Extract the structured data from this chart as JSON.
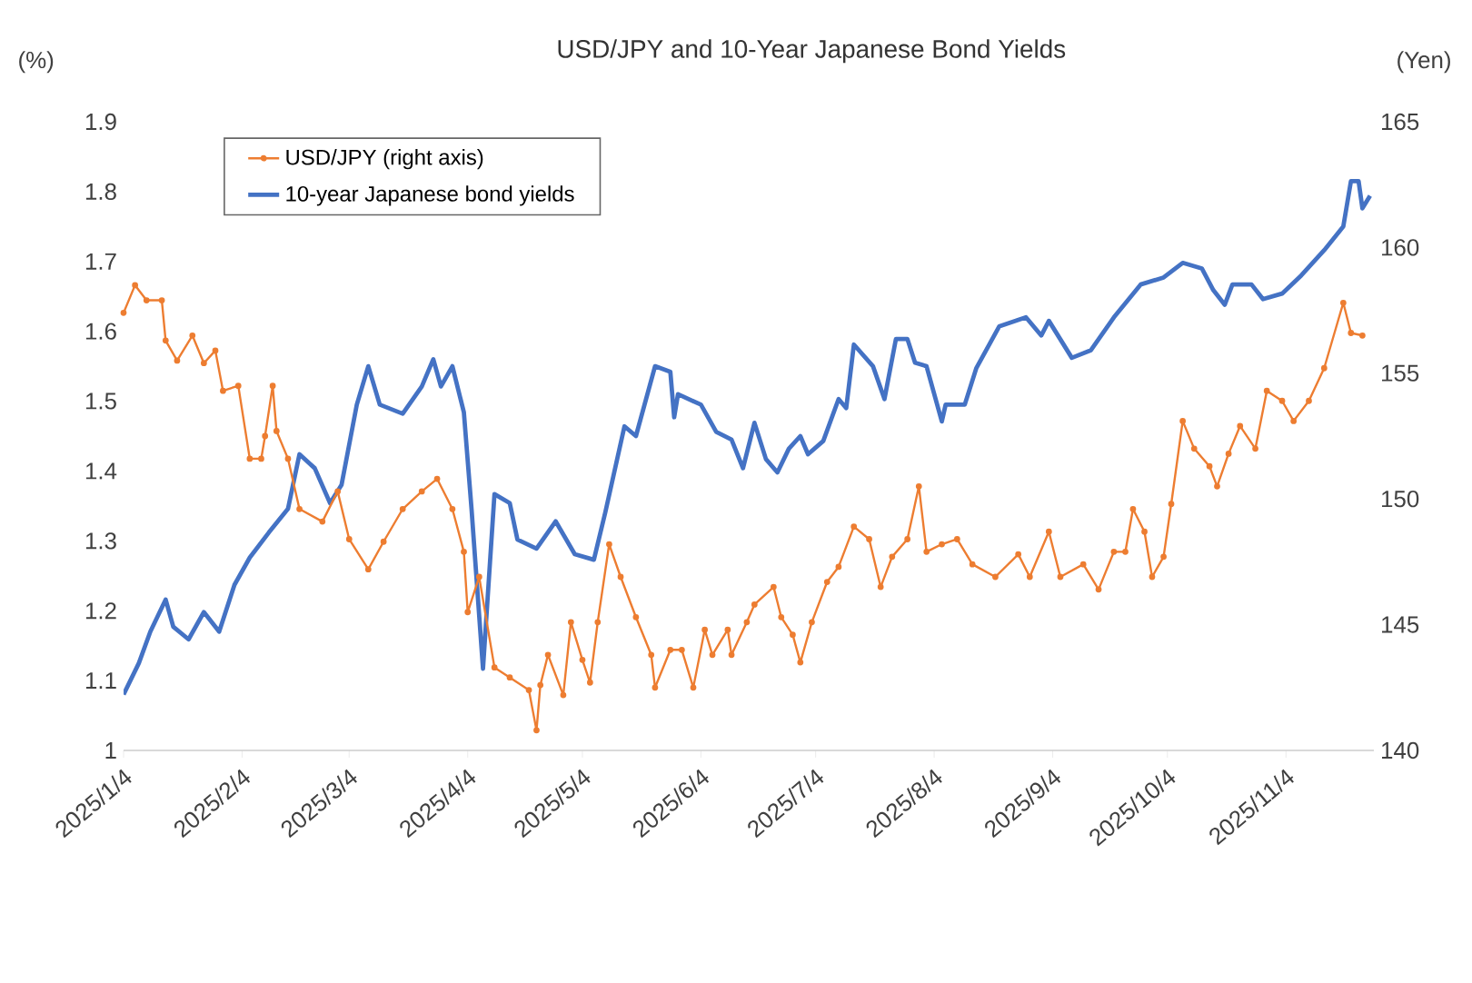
{
  "chart_data": {
    "type": "line",
    "title": "USD/JPY and 10-Year Japanese Bond Yields",
    "ylabel": "(%)",
    "y2label": "(Yen)",
    "xlim": [
      "2025-01-04",
      "2025-11-27"
    ],
    "xticks": [
      {
        "value": "2025-01-04",
        "label": "2025/1/4"
      },
      {
        "value": "2025-02-04",
        "label": "2025/2/4"
      },
      {
        "value": "2025-03-04",
        "label": "2025/3/4"
      },
      {
        "value": "2025-04-04",
        "label": "2025/4/4"
      },
      {
        "value": "2025-05-04",
        "label": "2025/5/4"
      },
      {
        "value": "2025-06-04",
        "label": "2025/6/4"
      },
      {
        "value": "2025-07-04",
        "label": "2025/7/4"
      },
      {
        "value": "2025-08-04",
        "label": "2025/8/4"
      },
      {
        "value": "2025-09-04",
        "label": "2025/9/4"
      },
      {
        "value": "2025-10-04",
        "label": "2025/10/4"
      },
      {
        "value": "2025-11-04",
        "label": "2025/11/4"
      }
    ],
    "ylim": [
      1,
      1.9
    ],
    "yticks": [
      1,
      1.1,
      1.2,
      1.3,
      1.4,
      1.5,
      1.6,
      1.7,
      1.8,
      1.9
    ],
    "y2lim": [
      140,
      165
    ],
    "y2ticks": [
      140,
      145,
      150,
      155,
      160,
      165
    ],
    "legend": "top",
    "series": [
      {
        "name": "USD/JPY (right axis)",
        "color": "#ed7d31",
        "axis": "y2",
        "marker": "circle",
        "x": [
          "2025-01-04",
          "2025-01-07",
          "2025-01-10",
          "2025-01-14",
          "2025-01-15",
          "2025-01-18",
          "2025-01-22",
          "2025-01-25",
          "2025-01-28",
          "2025-01-30",
          "2025-02-03",
          "2025-02-06",
          "2025-02-09",
          "2025-02-10",
          "2025-02-12",
          "2025-02-13",
          "2025-02-16",
          "2025-02-19",
          "2025-02-25",
          "2025-03-01",
          "2025-03-04",
          "2025-03-09",
          "2025-03-13",
          "2025-03-18",
          "2025-03-23",
          "2025-03-27",
          "2025-03-31",
          "2025-04-03",
          "2025-04-04",
          "2025-04-07",
          "2025-04-11",
          "2025-04-15",
          "2025-04-20",
          "2025-04-22",
          "2025-04-23",
          "2025-04-25",
          "2025-04-29",
          "2025-05-01",
          "2025-05-04",
          "2025-05-06",
          "2025-05-08",
          "2025-05-11",
          "2025-05-14",
          "2025-05-18",
          "2025-05-22",
          "2025-05-23",
          "2025-05-27",
          "2025-05-30",
          "2025-06-02",
          "2025-06-05",
          "2025-06-07",
          "2025-06-11",
          "2025-06-12",
          "2025-06-16",
          "2025-06-18",
          "2025-06-23",
          "2025-06-25",
          "2025-06-28",
          "2025-06-30",
          "2025-07-03",
          "2025-07-07",
          "2025-07-10",
          "2025-07-14",
          "2025-07-18",
          "2025-07-21",
          "2025-07-24",
          "2025-07-28",
          "2025-07-31",
          "2025-08-02",
          "2025-08-06",
          "2025-08-10",
          "2025-08-14",
          "2025-08-20",
          "2025-08-26",
          "2025-08-29",
          "2025-09-03",
          "2025-09-06",
          "2025-09-12",
          "2025-09-16",
          "2025-09-20",
          "2025-09-23",
          "2025-09-25",
          "2025-09-28",
          "2025-09-30",
          "2025-10-03",
          "2025-10-05",
          "2025-10-08",
          "2025-10-11",
          "2025-10-15",
          "2025-10-17",
          "2025-10-20",
          "2025-10-23",
          "2025-10-27",
          "2025-10-30",
          "2025-11-03",
          "2025-11-06",
          "2025-11-10",
          "2025-11-14",
          "2025-11-19",
          "2025-11-21",
          "2025-11-24"
        ],
        "values": [
          157.4,
          158.5,
          157.9,
          157.9,
          156.3,
          155.5,
          156.5,
          155.4,
          155.9,
          154.3,
          154.5,
          151.6,
          151.6,
          152.5,
          154.5,
          152.7,
          151.6,
          149.6,
          149.1,
          150.3,
          148.4,
          147.2,
          148.3,
          149.6,
          150.3,
          150.8,
          149.6,
          147.9,
          145.5,
          146.9,
          143.3,
          142.9,
          142.4,
          140.8,
          142.6,
          143.8,
          142.2,
          145.1,
          143.6,
          142.7,
          145.1,
          148.2,
          146.9,
          145.3,
          143.8,
          142.5,
          144.0,
          144.0,
          142.5,
          144.8,
          143.8,
          144.8,
          143.8,
          145.1,
          145.8,
          146.5,
          145.3,
          144.6,
          143.5,
          145.1,
          146.7,
          147.3,
          148.9,
          148.4,
          146.5,
          147.7,
          148.4,
          150.5,
          147.9,
          148.2,
          148.4,
          147.4,
          146.9,
          147.8,
          146.9,
          148.7,
          146.9,
          147.4,
          146.4,
          147.9,
          147.9,
          149.6,
          148.7,
          146.9,
          147.7,
          149.8,
          153.1,
          152.0,
          151.3,
          150.5,
          151.8,
          152.9,
          152.0,
          154.3,
          153.9,
          153.1,
          153.9,
          155.2,
          157.8,
          156.6,
          156.5
        ]
      },
      {
        "name": "10-year Japanese bond yields",
        "color": "#4472c4",
        "marker": "none",
        "x": [
          "2025-01-04",
          "2025-01-08",
          "2025-01-11",
          "2025-01-15",
          "2025-01-17",
          "2025-01-21",
          "2025-01-25",
          "2025-01-29",
          "2025-02-02",
          "2025-02-06",
          "2025-02-11",
          "2025-02-16",
          "2025-02-19",
          "2025-02-23",
          "2025-02-27",
          "2025-03-02",
          "2025-03-06",
          "2025-03-09",
          "2025-03-12",
          "2025-03-18",
          "2025-03-23",
          "2025-03-26",
          "2025-03-28",
          "2025-03-31",
          "2025-04-03",
          "2025-04-05",
          "2025-04-08",
          "2025-04-11",
          "2025-04-15",
          "2025-04-17",
          "2025-04-22",
          "2025-04-27",
          "2025-05-02",
          "2025-05-07",
          "2025-05-10",
          "2025-05-15",
          "2025-05-18",
          "2025-05-23",
          "2025-05-27",
          "2025-05-28",
          "2025-05-29",
          "2025-06-04",
          "2025-06-08",
          "2025-06-12",
          "2025-06-15",
          "2025-06-18",
          "2025-06-21",
          "2025-06-24",
          "2025-06-27",
          "2025-06-30",
          "2025-07-02",
          "2025-07-06",
          "2025-07-10",
          "2025-07-12",
          "2025-07-14",
          "2025-07-19",
          "2025-07-22",
          "2025-07-25",
          "2025-07-28",
          "2025-07-30",
          "2025-08-02",
          "2025-08-06",
          "2025-08-07",
          "2025-08-12",
          "2025-08-15",
          "2025-08-21",
          "2025-08-28",
          "2025-09-01",
          "2025-09-03",
          "2025-09-09",
          "2025-09-14",
          "2025-09-20",
          "2025-09-27",
          "2025-10-03",
          "2025-10-08",
          "2025-10-13",
          "2025-10-16",
          "2025-10-19",
          "2025-10-21",
          "2025-10-26",
          "2025-10-29",
          "2025-11-03",
          "2025-11-08",
          "2025-11-14",
          "2025-11-19",
          "2025-11-21",
          "2025-11-23",
          "2025-11-24",
          "2025-11-26"
        ],
        "values": [
          1.08,
          1.125,
          1.17,
          1.216,
          1.177,
          1.159,
          1.198,
          1.17,
          1.237,
          1.276,
          1.312,
          1.346,
          1.424,
          1.404,
          1.354,
          1.38,
          1.495,
          1.55,
          1.495,
          1.482,
          1.521,
          1.56,
          1.521,
          1.55,
          1.484,
          1.346,
          1.117,
          1.367,
          1.354,
          1.302,
          1.289,
          1.328,
          1.281,
          1.273,
          1.341,
          1.464,
          1.45,
          1.55,
          1.542,
          1.477,
          1.51,
          1.495,
          1.456,
          1.445,
          1.404,
          1.469,
          1.417,
          1.398,
          1.432,
          1.45,
          1.424,
          1.443,
          1.503,
          1.49,
          1.581,
          1.55,
          1.503,
          1.589,
          1.589,
          1.555,
          1.55,
          1.471,
          1.495,
          1.495,
          1.547,
          1.607,
          1.62,
          1.594,
          1.615,
          1.562,
          1.573,
          1.62,
          1.667,
          1.677,
          1.698,
          1.69,
          1.659,
          1.638,
          1.667,
          1.667,
          1.646,
          1.654,
          1.68,
          1.716,
          1.75,
          1.815,
          1.815,
          1.776,
          1.794
        ]
      }
    ]
  }
}
